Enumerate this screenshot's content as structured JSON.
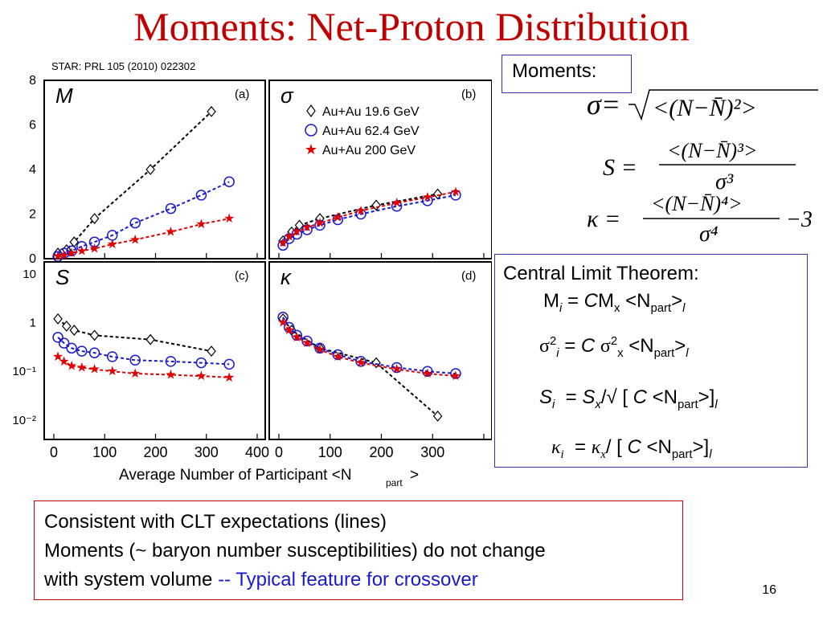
{
  "title": "Moments: Net-Proton Distribution",
  "citation": "STAR: PRL 105 (2010) 022302",
  "moments_box": {
    "label": "Moments:"
  },
  "clt_box": {
    "heading": "Central Limit Theorem:",
    "lines": [
      "M_i = C M_x <N_part>_l",
      "σ²_i = C σ²_x <N_part>_l",
      "S_i = S_x/√[C <N_part>]_l",
      "κ_i = κ_x/[C <N_part>]_l"
    ]
  },
  "note": {
    "line1": "Consistent with CLT expectations (lines)",
    "line2": "Moments (~ baryon number susceptibilities) do not change",
    "line3": "with system volume ",
    "line3_highlight": "-- Typical feature for crossover"
  },
  "page_number": "16",
  "colors": {
    "title": "#c00000",
    "series_196": "#000000",
    "series_624": "#1a1acc",
    "series_200": "#e00000",
    "box_border": "#3333aa"
  },
  "chart_data": [
    {
      "type": "scatter",
      "panel": "(a)",
      "label": "M",
      "xlim": [
        0,
        400
      ],
      "ylim": [
        0,
        8
      ],
      "yticks": [
        "0",
        "2",
        "4",
        "6",
        "8"
      ],
      "series": [
        {
          "name": "Au+Au 19.6 GeV",
          "x": [
            8,
            25,
            40,
            80,
            190,
            310
          ],
          "y": [
            0.25,
            0.4,
            0.75,
            1.8,
            4.0,
            6.6
          ]
        },
        {
          "name": "Au+Au 62.4 GeV",
          "x": [
            8,
            20,
            35,
            55,
            80,
            115,
            160,
            230,
            290,
            345
          ],
          "y": [
            0.1,
            0.25,
            0.35,
            0.55,
            0.75,
            1.05,
            1.6,
            2.25,
            2.85,
            3.45
          ]
        },
        {
          "name": "Au+Au 200 GeV",
          "x": [
            8,
            20,
            35,
            55,
            80,
            115,
            160,
            230,
            290,
            345
          ],
          "y": [
            0.1,
            0.15,
            0.25,
            0.35,
            0.45,
            0.65,
            0.85,
            1.2,
            1.55,
            1.8
          ]
        }
      ]
    },
    {
      "type": "scatter",
      "panel": "(b)",
      "label": "σ",
      "xlim": [
        0,
        400
      ],
      "ylim": [
        0,
        8
      ],
      "legend": [
        "Au+Au 19.6 GeV",
        "Au+Au 62.4 GeV",
        "Au+Au 200 GeV"
      ],
      "series": [
        {
          "name": "Au+Au 19.6 GeV",
          "x": [
            8,
            25,
            40,
            80,
            190,
            310
          ],
          "y": [
            0.8,
            1.2,
            1.5,
            1.8,
            2.4,
            2.9
          ]
        },
        {
          "name": "Au+Au 62.4 GeV",
          "x": [
            8,
            20,
            35,
            55,
            80,
            115,
            160,
            230,
            290,
            345
          ],
          "y": [
            0.6,
            0.9,
            1.1,
            1.3,
            1.5,
            1.75,
            2.0,
            2.35,
            2.6,
            2.85
          ]
        },
        {
          "name": "Au+Au 200 GeV",
          "x": [
            8,
            20,
            35,
            55,
            80,
            115,
            160,
            230,
            290,
            345
          ],
          "y": [
            0.7,
            1.0,
            1.2,
            1.4,
            1.6,
            1.85,
            2.15,
            2.5,
            2.75,
            3.0
          ]
        }
      ]
    },
    {
      "type": "scatter",
      "panel": "(c)",
      "label": "S",
      "xlim": [
        0,
        400
      ],
      "yscale": "log",
      "yticks": [
        "10",
        "1",
        "10⁻¹",
        "10⁻²"
      ],
      "series": [
        {
          "name": "Au+Au 19.6 GeV",
          "x": [
            8,
            25,
            40,
            80,
            190,
            310
          ],
          "y": [
            1.2,
            0.85,
            0.7,
            0.55,
            0.45,
            0.26
          ]
        },
        {
          "name": "Au+Au 62.4 GeV",
          "x": [
            8,
            20,
            35,
            55,
            80,
            115,
            160,
            230,
            290,
            345
          ],
          "y": [
            0.5,
            0.38,
            0.3,
            0.26,
            0.24,
            0.2,
            0.17,
            0.16,
            0.15,
            0.14
          ]
        },
        {
          "name": "Au+Au 200 GeV",
          "x": [
            8,
            20,
            35,
            55,
            80,
            115,
            160,
            230,
            290,
            345
          ],
          "y": [
            0.2,
            0.16,
            0.13,
            0.12,
            0.11,
            0.1,
            0.09,
            0.085,
            0.08,
            0.075
          ]
        }
      ]
    },
    {
      "type": "scatter",
      "panel": "(d)",
      "label": "κ",
      "xlim": [
        0,
        400
      ],
      "yscale": "log",
      "series": [
        {
          "name": "Au+Au 19.6 GeV",
          "x": [
            8,
            25,
            80,
            190,
            310
          ],
          "y": [
            1.2,
            0.7,
            0.3,
            0.15,
            0.012
          ]
        },
        {
          "name": "Au+Au 62.4 GeV",
          "x": [
            8,
            20,
            35,
            55,
            80,
            115,
            160,
            230,
            290,
            345
          ],
          "y": [
            1.3,
            0.8,
            0.55,
            0.42,
            0.3,
            0.22,
            0.16,
            0.12,
            0.1,
            0.09
          ]
        },
        {
          "name": "Au+Au 200 GeV",
          "x": [
            8,
            20,
            35,
            55,
            80,
            115,
            160,
            230,
            290,
            345
          ],
          "y": [
            1.0,
            0.7,
            0.5,
            0.38,
            0.28,
            0.2,
            0.15,
            0.11,
            0.09,
            0.08
          ]
        }
      ]
    }
  ],
  "x_ticks": [
    "0",
    "100",
    "200",
    "300",
    "400"
  ],
  "x_axis_label": "Average Number of Participant <N",
  "x_axis_label_sub": "part",
  "x_axis_label_end": ">"
}
